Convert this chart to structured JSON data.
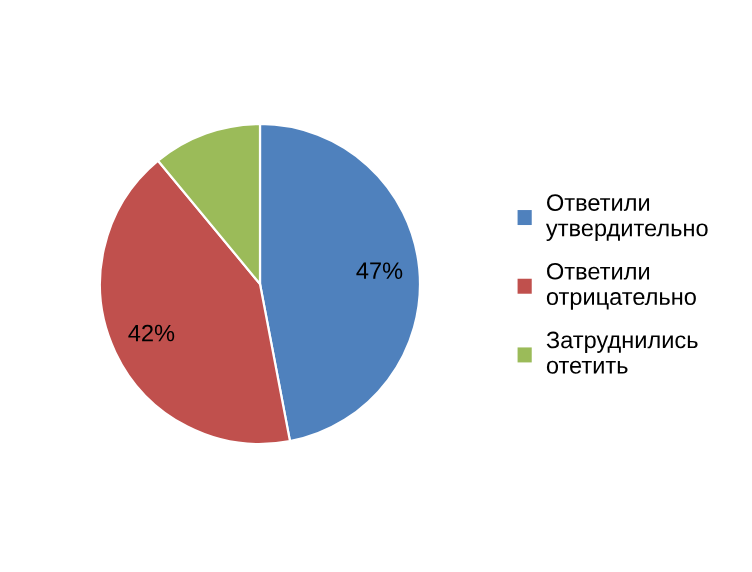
{
  "chart_data": {
    "type": "pie",
    "categories": [
      "Ответили\nутвердительно",
      "Ответили\nотрицательно",
      "Затруднились\nотетить"
    ],
    "values": [
      47,
      42,
      11
    ],
    "colors": [
      "#4f81bd",
      "#c0504d",
      "#9bbb59"
    ],
    "value_labels": [
      "47%",
      "42%",
      null
    ],
    "legend": "right"
  }
}
